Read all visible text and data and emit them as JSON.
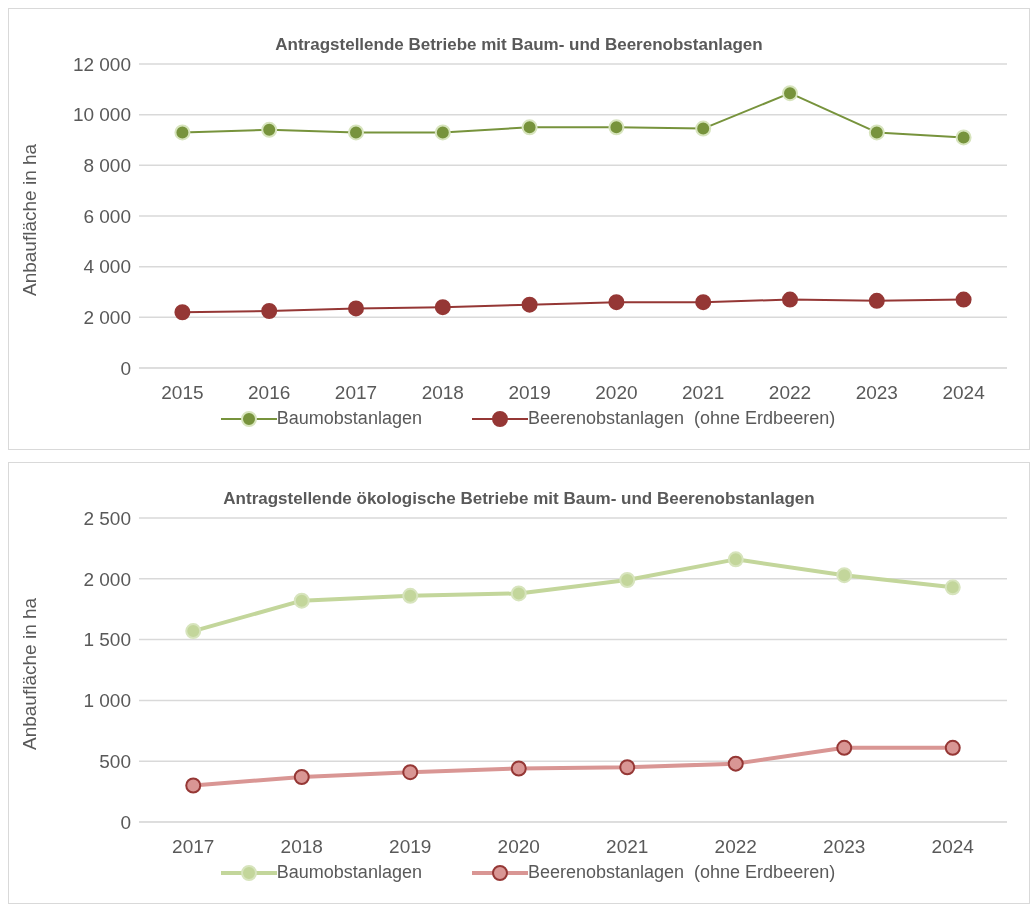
{
  "chart_data": [
    {
      "type": "line",
      "title": "Antragstellende Betriebe mit Baum- und Beerenobstanlagen",
      "ylabel": "Anbaufläche in ha",
      "categories": [
        "2015",
        "2016",
        "2017",
        "2018",
        "2019",
        "2020",
        "2021",
        "2022",
        "2023",
        "2024"
      ],
      "series": [
        {
          "name": "Baumobstanlagen",
          "color": "#77933c",
          "values": [
            9300,
            9400,
            9300,
            9300,
            9500,
            9500,
            9450,
            10850,
            9300,
            9100
          ]
        },
        {
          "name": "Beerenobstanlagen  (ohne Erdbeeren)",
          "color": "#953735",
          "values": [
            2200,
            2250,
            2350,
            2400,
            2500,
            2600,
            2600,
            2700,
            2650,
            2700
          ]
        }
      ],
      "ylim": [
        0,
        12000
      ],
      "yticks": [
        {
          "value": 0,
          "label": "0"
        },
        {
          "value": 2000,
          "label": "2 000"
        },
        {
          "value": 4000,
          "label": "4 000"
        },
        {
          "value": 6000,
          "label": "6 000"
        },
        {
          "value": 8000,
          "label": "8 000"
        },
        {
          "value": 10000,
          "label": "10 000"
        },
        {
          "value": 12000,
          "label": "12 000"
        }
      ],
      "grid": "y",
      "legend": "bottom",
      "marker": "circle",
      "line_style": "solid"
    },
    {
      "type": "line",
      "title": "Antragstellende ökologische Betriebe mit Baum- und Beerenobstanlagen",
      "ylabel": "Anbaufläche in ha",
      "categories": [
        "2017",
        "2018",
        "2019",
        "2020",
        "2021",
        "2022",
        "2023",
        "2024"
      ],
      "series": [
        {
          "name": "Baumobstanlagen",
          "color": "#c3d69b",
          "values": [
            1570,
            1820,
            1860,
            1880,
            1990,
            2160,
            2030,
            1930
          ]
        },
        {
          "name": "Beerenobstanlagen  (ohne Erdbeeren)",
          "color": "#d99694",
          "values": [
            300,
            370,
            410,
            440,
            450,
            480,
            610,
            610
          ]
        }
      ],
      "ylim": [
        0,
        2500
      ],
      "yticks": [
        {
          "value": 0,
          "label": "0"
        },
        {
          "value": 500,
          "label": "500"
        },
        {
          "value": 1000,
          "label": "1 000"
        },
        {
          "value": 1500,
          "label": "1 500"
        },
        {
          "value": 2000,
          "label": "2 000"
        },
        {
          "value": 2500,
          "label": "2 500"
        }
      ],
      "grid": "y",
      "legend": "bottom",
      "marker": "circle",
      "line_style": "solid"
    }
  ]
}
